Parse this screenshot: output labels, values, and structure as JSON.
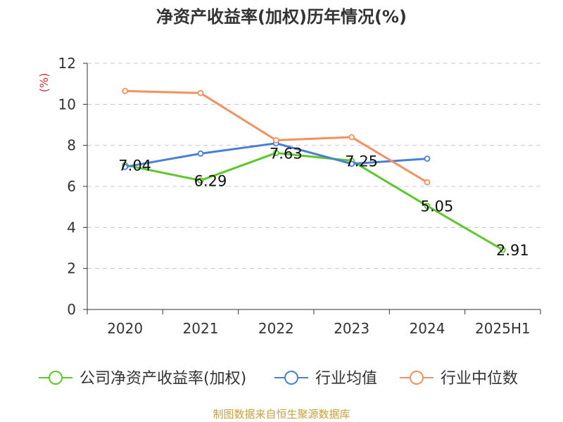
{
  "chart_data": {
    "type": "line",
    "title": "净资产收益率(加权)历年情况(%)",
    "ylabel": "(%)",
    "categories": [
      "2020",
      "2021",
      "2022",
      "2023",
      "2024",
      "2025H1"
    ],
    "ylim": [
      0,
      12
    ],
    "yticks": [
      0,
      2,
      4,
      6,
      8,
      10,
      12
    ],
    "grid": true,
    "legend_position": "bottom",
    "series": [
      {
        "name": "公司净资产收益率(加权)",
        "color": "#5ec72a",
        "values": [
          7.04,
          6.29,
          7.63,
          7.25,
          5.05,
          2.91
        ],
        "labels": true
      },
      {
        "name": "行业均值",
        "color": "#4a7fd6",
        "values": [
          6.95,
          7.6,
          8.1,
          7.1,
          7.35,
          null
        ],
        "labels": false
      },
      {
        "name": "行业中位数",
        "color": "#f49060",
        "values": [
          10.65,
          10.55,
          8.25,
          8.4,
          6.2,
          null
        ],
        "labels": false
      }
    ]
  },
  "footer": {
    "source": "制图数据来自恒生聚源数据库"
  }
}
